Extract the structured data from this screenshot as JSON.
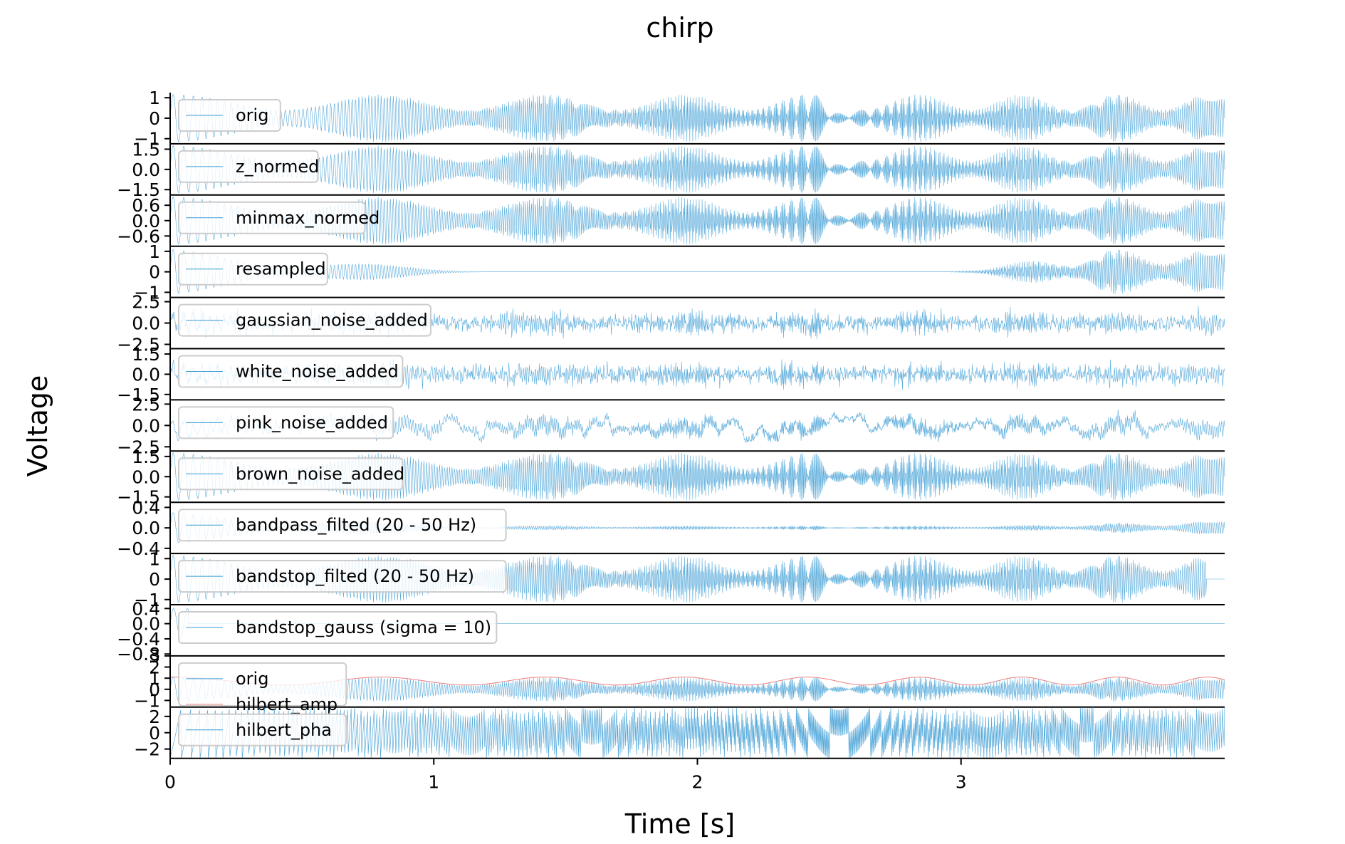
{
  "chart_data": {
    "type": "line",
    "title": "chirp",
    "xlabel": "Time [s]",
    "ylabel": "Voltage",
    "xlim": [
      0,
      4.0
    ],
    "xticks": [
      0,
      1,
      2,
      3
    ],
    "xtick_labels": [
      "0",
      "1",
      "2",
      "3"
    ],
    "grid": false,
    "legend_placement": "upper-left",
    "series_color": "#3a9bd4",
    "envelope_color": "#f08080",
    "panels": [
      {
        "name": "orig",
        "ylim": [
          -1.25,
          1.25
        ],
        "yticks": [
          1,
          0,
          -1
        ],
        "ytick_labels": [
          "1",
          "0",
          "−1"
        ],
        "legend": [
          "orig"
        ],
        "kind": "chirp"
      },
      {
        "name": "z_normed",
        "ylim": [
          -1.9,
          1.9
        ],
        "yticks": [
          1.5,
          0.0,
          -1.5
        ],
        "ytick_labels": [
          "1.5",
          "0.0",
          "−1.5"
        ],
        "legend": [
          "z_normed"
        ],
        "kind": "chirp"
      },
      {
        "name": "minmax_normed",
        "ylim": [
          -1.0,
          1.0
        ],
        "yticks": [
          0.6,
          0.0,
          -0.6
        ],
        "ytick_labels": [
          "0.6",
          "0.0",
          "−0.6"
        ],
        "legend": [
          "minmax_normed"
        ],
        "kind": "chirp"
      },
      {
        "name": "resampled",
        "ylim": [
          -1.25,
          1.25
        ],
        "yticks": [
          1,
          0,
          -1
        ],
        "ytick_labels": [
          "1",
          "0",
          "−1"
        ],
        "legend": [
          "resampled"
        ],
        "kind": "resampled"
      },
      {
        "name": "gaussian_noise_added",
        "ylim": [
          -3.0,
          3.0
        ],
        "yticks": [
          2.5,
          0.0,
          -2.5
        ],
        "ytick_labels": [
          "2.5",
          "0.0",
          "−2.5"
        ],
        "legend": [
          "gaussian_noise_added"
        ],
        "kind": "noise"
      },
      {
        "name": "white_noise_added",
        "ylim": [
          -1.9,
          1.9
        ],
        "yticks": [
          1.5,
          0.0,
          -1.5
        ],
        "ytick_labels": [
          "1.5",
          "0.0",
          "−1.5"
        ],
        "legend": [
          "white_noise_added"
        ],
        "kind": "noise"
      },
      {
        "name": "pink_noise_added",
        "ylim": [
          -3.0,
          3.0
        ],
        "yticks": [
          2.5,
          0.0,
          -2.5
        ],
        "ytick_labels": [
          "2.5",
          "0.0",
          "−2.5"
        ],
        "legend": [
          "pink_noise_added"
        ],
        "kind": "pink"
      },
      {
        "name": "brown_noise_added",
        "ylim": [
          -1.9,
          1.9
        ],
        "yticks": [
          1.5,
          0.0,
          -1.5
        ],
        "ytick_labels": [
          "1.5",
          "0.0",
          "−1.5"
        ],
        "legend": [
          "brown_noise_added"
        ],
        "kind": "chirp"
      },
      {
        "name": "bandpass_filted (20 - 50 Hz)",
        "ylim": [
          -0.5,
          0.5
        ],
        "yticks": [
          0.4,
          0.0,
          -0.4
        ],
        "ytick_labels": [
          "0.4",
          "0.0",
          "−0.4"
        ],
        "legend": [
          "bandpass_filted (20 - 50 Hz)"
        ],
        "kind": "bandpass"
      },
      {
        "name": "bandstop_filted (20 - 50 Hz)",
        "ylim": [
          -1.25,
          1.25
        ],
        "yticks": [
          1,
          0,
          -1
        ],
        "ytick_labels": [
          "1",
          "0",
          "−1"
        ],
        "legend": [
          "bandstop_filted (20 - 50 Hz)"
        ],
        "kind": "bandstop"
      },
      {
        "name": "bandstop_gauss (sigma = 10)",
        "ylim": [
          -0.85,
          0.5
        ],
        "yticks": [
          0.4,
          0.0,
          -0.4,
          -0.8
        ],
        "ytick_labels": [
          "0.4",
          "0.0",
          "−0.4",
          "−0.8"
        ],
        "legend": [
          "bandstop_gauss (sigma = 10)"
        ],
        "kind": "flat"
      },
      {
        "name": "hilbert_amp",
        "ylim": [
          -1.6,
          3.0
        ],
        "yticks": [
          3,
          2,
          1,
          0,
          -1
        ],
        "ytick_labels": [
          "3",
          "2",
          "1",
          "0",
          "−1"
        ],
        "legend": [
          "orig",
          "hilbert_amp"
        ],
        "kind": "hilbert_amp"
      },
      {
        "name": "hilbert_pha",
        "ylim": [
          -3.14,
          3.14
        ],
        "yticks": [
          2,
          0,
          -2
        ],
        "ytick_labels": [
          "2",
          "0",
          "−2"
        ],
        "legend": [
          "hilbert_pha"
        ],
        "kind": "phase"
      }
    ]
  }
}
